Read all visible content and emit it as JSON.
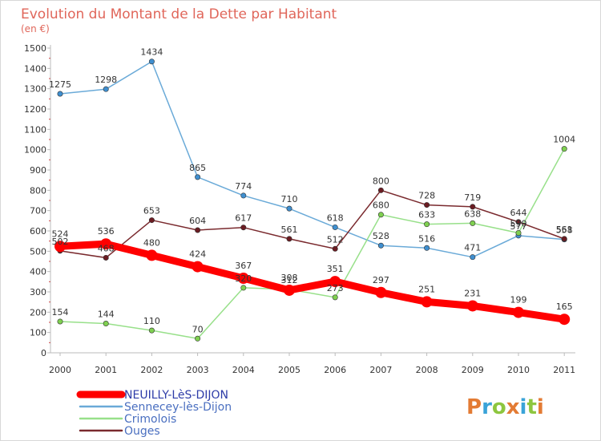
{
  "chart_data": {
    "type": "line",
    "title": "Evolution du Montant de la Dette par Habitant",
    "subtitle": "(en €)",
    "xlabel": "",
    "ylabel": "",
    "categories": [
      "2000",
      "2001",
      "2002",
      "2003",
      "2004",
      "2005",
      "2006",
      "2007",
      "2008",
      "2009",
      "2010",
      "2011"
    ],
    "yticks": [
      "0",
      "100",
      "200",
      "300",
      "400",
      "500",
      "600",
      "700",
      "800",
      "900",
      "1000",
      "1100",
      "1200",
      "1300",
      "1400",
      "1500"
    ],
    "ylim": [
      0,
      1500
    ],
    "grid": false,
    "legend_position": "bottom-left",
    "series": [
      {
        "name": "NEUILLY-LèS-DIJON",
        "color": "#ff0000",
        "marker": "#ff0000",
        "values": [
          524,
          536,
          480,
          424,
          367,
          308,
          351,
          297,
          251,
          231,
          199,
          165
        ]
      },
      {
        "name": "Sennecey-lès-Dijon",
        "color": "#6aaad8",
        "marker": "#3f8fd0",
        "values": [
          1275,
          1298,
          1434,
          865,
          774,
          710,
          618,
          528,
          516,
          471,
          577,
          558
        ]
      },
      {
        "name": "Crimolois",
        "color": "#98e08a",
        "marker": "#7fd050",
        "values": [
          154,
          144,
          110,
          70,
          320,
          312,
          273,
          680,
          633,
          638,
          590,
          1004
        ]
      },
      {
        "name": "Ouges",
        "color": "#7a2a2e",
        "marker": "#6b1c22",
        "values": [
          502,
          468,
          653,
          604,
          617,
          561,
          512,
          800,
          728,
          719,
          644,
          561
        ]
      }
    ]
  },
  "logo": {
    "text": "Proxiti"
  }
}
